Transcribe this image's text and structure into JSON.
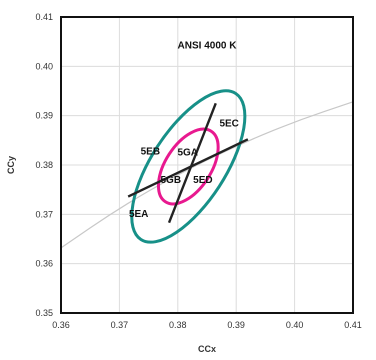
{
  "chart_data": {
    "type": "line",
    "title": "ANSI 4000 K",
    "xlabel": "CCx",
    "ylabel": "CCy",
    "xlim": [
      0.36,
      0.41
    ],
    "ylim": [
      0.35,
      0.41
    ],
    "xticks": [
      "0.36",
      "0.37",
      "0.38",
      "0.39",
      "0.40",
      "0.41"
    ],
    "yticks": [
      "0.35",
      "0.36",
      "0.37",
      "0.38",
      "0.39",
      "0.40",
      "0.41"
    ],
    "grid": true,
    "planckian_locus": {
      "color": "#c8c8c8",
      "points": [
        [
          0.36,
          0.3632
        ],
        [
          0.37,
          0.3713
        ],
        [
          0.38,
          0.3781
        ],
        [
          0.39,
          0.3839
        ],
        [
          0.4,
          0.3888
        ],
        [
          0.41,
          0.3928
        ]
      ]
    },
    "ellipses": [
      {
        "color": "#179088",
        "center": [
          0.3818,
          0.3797
        ],
        "semi_major": 0.0149,
        "semi_minor": 0.0063,
        "angle_deg": 57
      },
      {
        "color": "#e8198f",
        "center": [
          0.3818,
          0.3797
        ],
        "semi_major": 0.0072,
        "semi_minor": 0.0039,
        "angle_deg": 57
      }
    ],
    "bin_lines": [
      {
        "color": "#222222",
        "points": [
          [
            0.3715,
            0.3736
          ],
          [
            0.392,
            0.3852
          ]
        ]
      },
      {
        "color": "#222222",
        "points": [
          [
            0.3785,
            0.3683
          ],
          [
            0.3865,
            0.3925
          ]
        ]
      }
    ],
    "bin_labels": [
      {
        "text": "5EC",
        "x": 0.3888,
        "y": 0.3878
      },
      {
        "text": "5EB",
        "x": 0.3753,
        "y": 0.3821
      },
      {
        "text": "5GA",
        "x": 0.3817,
        "y": 0.3819
      },
      {
        "text": "5GB",
        "x": 0.3788,
        "y": 0.3764
      },
      {
        "text": "5ED",
        "x": 0.3843,
        "y": 0.3764
      },
      {
        "text": "5EA",
        "x": 0.3733,
        "y": 0.3695
      }
    ]
  }
}
